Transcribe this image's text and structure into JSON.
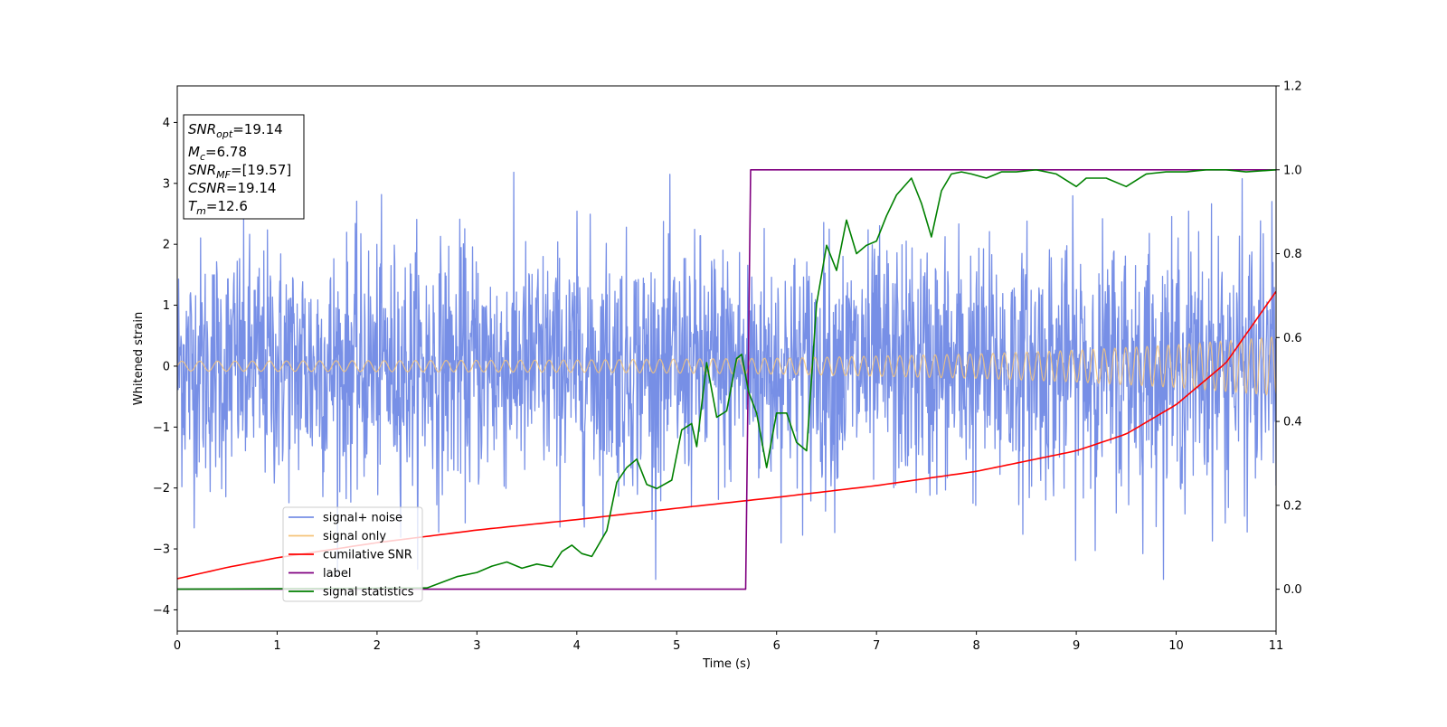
{
  "chart_data": {
    "type": "line",
    "xlabel": "Time (s)",
    "ylabel": "Whitened strain",
    "xlim": [
      0,
      11
    ],
    "ylim": [
      -4.35,
      4.6
    ],
    "y2lim": [
      -0.1,
      1.2
    ],
    "xticks": [
      "0",
      "1",
      "2",
      "3",
      "4",
      "5",
      "6",
      "7",
      "8",
      "9",
      "10",
      "11"
    ],
    "yticks": [
      "−4",
      "−3",
      "−2",
      "−1",
      "0",
      "1",
      "2",
      "3",
      "4"
    ],
    "y2ticks": [
      "0.0",
      "0.2",
      "0.4",
      "0.6",
      "0.8",
      "1.0",
      "1.2"
    ],
    "annotation": {
      "lines": [
        {
          "sym": "SNR",
          "sub": "opt",
          "val": "=19.14"
        },
        {
          "sym": "M",
          "sub": "c",
          "val": "=6.78"
        },
        {
          "sym": "SNR",
          "sub": "MF",
          "val": "=[19.57]"
        },
        {
          "sym": "CSNR",
          "sub": "",
          "val": "=19.14"
        },
        {
          "sym": "T",
          "sub": "m",
          "val": "=12.6"
        }
      ]
    },
    "legend": {
      "placement": "lower-left",
      "entries": [
        {
          "label": "signal+ noise",
          "color": "#778fe6"
        },
        {
          "label": "signal only",
          "color": "#f5c47a"
        },
        {
          "label": "cumilative SNR",
          "color": "#ff0000"
        },
        {
          "label": "label",
          "color": "#800080"
        },
        {
          "label": "signal statistics",
          "color": "#008000"
        }
      ]
    },
    "series": [
      {
        "name": "signal+ noise",
        "axis": "left",
        "color": "#778fe6",
        "noise_sigma": 1.0,
        "typical_range": [
          -3.5,
          3.3
        ],
        "max": 4.15,
        "min": -3.9
      },
      {
        "name": "signal only",
        "axis": "left",
        "color": "#f5c47a",
        "envelope_x": [
          0,
          2,
          4,
          6,
          8,
          9,
          10,
          11
        ],
        "envelope_amp": [
          0.08,
          0.09,
          0.1,
          0.13,
          0.2,
          0.26,
          0.35,
          0.48
        ]
      },
      {
        "name": "cumilative SNR",
        "axis": "right",
        "color": "#ff0000",
        "x": [
          0,
          0.5,
          1,
          2,
          3,
          4,
          5,
          6,
          7,
          8,
          9,
          9.5,
          10,
          10.5,
          11
        ],
        "y": [
          0.025,
          0.052,
          0.075,
          0.111,
          0.141,
          0.166,
          0.193,
          0.219,
          0.247,
          0.281,
          0.33,
          0.37,
          0.44,
          0.54,
          0.71
        ]
      },
      {
        "name": "label",
        "axis": "right",
        "color": "#800080",
        "x": [
          0,
          5.69,
          5.74,
          11
        ],
        "y": [
          0,
          0,
          1,
          1
        ]
      },
      {
        "name": "signal statistics",
        "axis": "right",
        "color": "#008000",
        "x": [
          0,
          2.5,
          2.8,
          3.0,
          3.15,
          3.3,
          3.45,
          3.6,
          3.75,
          3.85,
          3.95,
          4.05,
          4.15,
          4.3,
          4.4,
          4.5,
          4.6,
          4.7,
          4.8,
          4.95,
          5.05,
          5.15,
          5.2,
          5.3,
          5.4,
          5.5,
          5.6,
          5.65,
          5.72,
          5.8,
          5.9,
          6.0,
          6.1,
          6.2,
          6.3,
          6.4,
          6.5,
          6.6,
          6.7,
          6.8,
          6.9,
          7.0,
          7.1,
          7.2,
          7.35,
          7.45,
          7.55,
          7.65,
          7.75,
          7.85,
          7.95,
          8.1,
          8.25,
          8.4,
          8.6,
          8.8,
          9.0,
          9.1,
          9.3,
          9.5,
          9.7,
          9.9,
          10.1,
          10.3,
          10.5,
          10.7,
          11
        ],
        "y": [
          0,
          0.003,
          0.03,
          0.04,
          0.055,
          0.065,
          0.05,
          0.06,
          0.053,
          0.09,
          0.105,
          0.085,
          0.078,
          0.14,
          0.255,
          0.29,
          0.31,
          0.25,
          0.24,
          0.26,
          0.38,
          0.395,
          0.34,
          0.54,
          0.41,
          0.425,
          0.55,
          0.56,
          0.47,
          0.42,
          0.29,
          0.42,
          0.42,
          0.35,
          0.33,
          0.68,
          0.82,
          0.76,
          0.88,
          0.8,
          0.82,
          0.83,
          0.89,
          0.94,
          0.98,
          0.92,
          0.84,
          0.95,
          0.99,
          0.995,
          0.99,
          0.98,
          0.995,
          0.995,
          1.0,
          0.99,
          0.96,
          0.98,
          0.98,
          0.96,
          0.99,
          0.995,
          0.995,
          1.0,
          1.0,
          0.995,
          1.0
        ]
      }
    ]
  }
}
